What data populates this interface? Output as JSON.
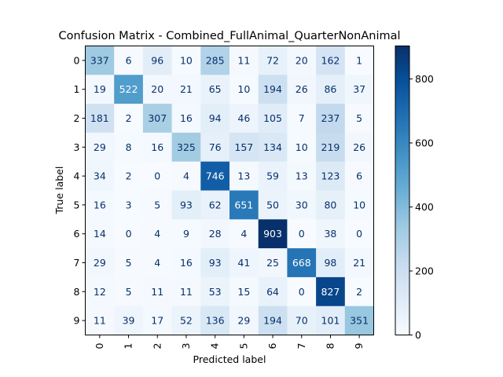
{
  "chart_data": {
    "type": "heatmap",
    "title": "Confusion Matrix - Combined_FullAnimal_QuarterNonAnimal",
    "xlabel": "Predicted label",
    "ylabel": "True label",
    "x_ticks": [
      "0",
      "1",
      "2",
      "3",
      "4",
      "5",
      "6",
      "7",
      "8",
      "9"
    ],
    "y_ticks": [
      "0",
      "1",
      "2",
      "3",
      "4",
      "5",
      "6",
      "7",
      "8",
      "9"
    ],
    "matrix": [
      [
        337,
        6,
        96,
        10,
        285,
        11,
        72,
        20,
        162,
        1
      ],
      [
        19,
        522,
        20,
        21,
        65,
        10,
        194,
        26,
        86,
        37
      ],
      [
        181,
        2,
        307,
        16,
        94,
        46,
        105,
        7,
        237,
        5
      ],
      [
        29,
        8,
        16,
        325,
        76,
        157,
        134,
        10,
        219,
        26
      ],
      [
        34,
        2,
        0,
        4,
        746,
        13,
        59,
        13,
        123,
        6
      ],
      [
        16,
        3,
        5,
        93,
        62,
        651,
        50,
        30,
        80,
        10
      ],
      [
        14,
        0,
        4,
        9,
        28,
        4,
        903,
        0,
        38,
        0
      ],
      [
        29,
        5,
        4,
        16,
        93,
        41,
        25,
        668,
        98,
        21
      ],
      [
        12,
        5,
        11,
        11,
        53,
        15,
        64,
        0,
        827,
        2
      ],
      [
        11,
        39,
        17,
        52,
        136,
        29,
        194,
        70,
        101,
        351
      ]
    ],
    "colormap": "Blues",
    "vmin": 0,
    "vmax": 903,
    "colorbar_ticks": [
      0,
      200,
      400,
      600,
      800
    ],
    "colorbar_tick_labels": [
      "0",
      "200",
      "400",
      "600",
      "800"
    ],
    "grid": false
  }
}
